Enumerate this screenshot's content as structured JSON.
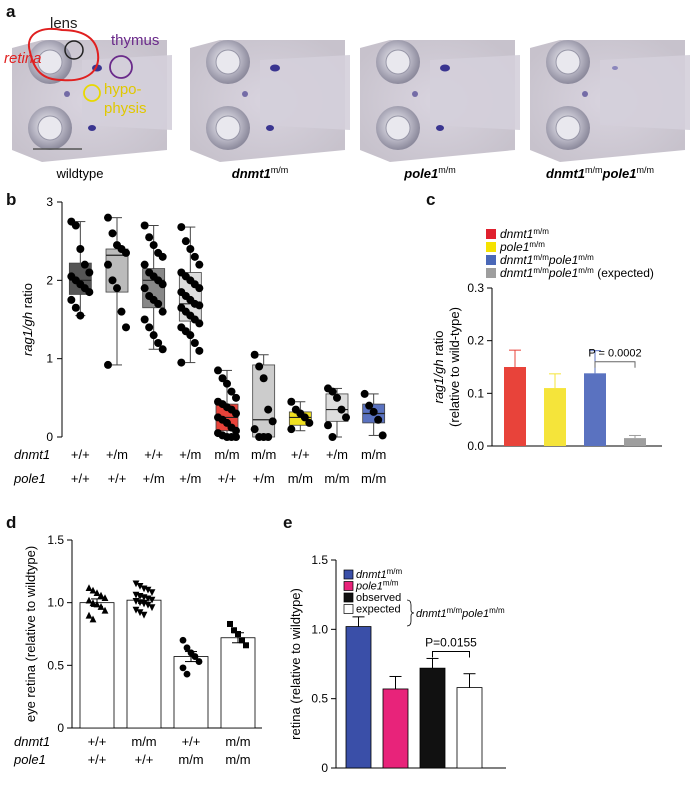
{
  "panels": {
    "a": {
      "letter": "a",
      "labels": {
        "lens": "lens",
        "thymus": "thymus",
        "retina": "retina",
        "hypophysis_1": "hypo-",
        "hypophysis_2": "physis"
      },
      "images": [
        {
          "genotype_main": "wildtype",
          "genotype_sup": ""
        },
        {
          "genotype_main": "dnmt1",
          "genotype_sup": "m/m"
        },
        {
          "genotype_main": "pole1",
          "genotype_sup": "m/m"
        },
        {
          "genotype_main": "dnmt1",
          "genotype_sup": "m/m",
          "genotype_main2": "pole1",
          "genotype_sup2": "m/m"
        }
      ],
      "colors": {
        "retina": "#e02020",
        "thymus": "#6a2a8a",
        "hypophysis": "#e8d800",
        "lens": "#222222"
      }
    },
    "b": {
      "letter": "b"
    },
    "c": {
      "letter": "c"
    },
    "d": {
      "letter": "d"
    },
    "e": {
      "letter": "e"
    }
  },
  "chart_data": [
    {
      "panel": "b",
      "type": "box",
      "ylabel_italic": "rag1/gh",
      "ylabel_rest": " ratio",
      "ylim": [
        0,
        3
      ],
      "yticks": [
        "0",
        "1",
        "2",
        "3"
      ],
      "row_labels": [
        "dnmt1",
        "pole1"
      ],
      "dnmt1": [
        "+/+",
        "+/m",
        "+/+",
        "+/m",
        "m/m",
        "m/m",
        "+/+",
        "+/m",
        "m/m"
      ],
      "pole1": [
        "+/+",
        "+/+",
        "+/m",
        "+/m",
        "+/+",
        "+/m",
        "m/m",
        "m/m",
        "m/m"
      ],
      "groups": [
        {
          "color": "#555555",
          "q1": 1.82,
          "median": 2.0,
          "q3": 2.22,
          "min": 1.55,
          "max": 2.75,
          "points": [
            2.75,
            2.7,
            2.4,
            2.2,
            2.1,
            2.05,
            2.0,
            1.95,
            1.9,
            1.85,
            1.75,
            1.65,
            1.55
          ]
        },
        {
          "color": "#bbbbbb",
          "q1": 1.85,
          "median": 2.32,
          "q3": 2.4,
          "min": 0.92,
          "max": 2.8,
          "points": [
            2.8,
            2.6,
            2.45,
            2.4,
            2.35,
            2.2,
            2.0,
            1.9,
            1.6,
            1.4,
            0.92
          ]
        },
        {
          "color": "#888888",
          "q1": 1.65,
          "median": 2.0,
          "q3": 2.15,
          "min": 1.12,
          "max": 2.7,
          "points": [
            2.7,
            2.55,
            2.45,
            2.35,
            2.3,
            2.2,
            2.1,
            2.05,
            2.0,
            1.95,
            1.9,
            1.8,
            1.75,
            1.7,
            1.6,
            1.5,
            1.4,
            1.3,
            1.2,
            1.12
          ]
        },
        {
          "color": "#dddddd",
          "q1": 1.48,
          "median": 1.7,
          "q3": 2.1,
          "min": 0.95,
          "max": 2.68,
          "points": [
            2.68,
            2.5,
            2.4,
            2.3,
            2.2,
            2.1,
            2.05,
            2.0,
            1.95,
            1.9,
            1.85,
            1.8,
            1.75,
            1.7,
            1.68,
            1.65,
            1.6,
            1.55,
            1.5,
            1.45,
            1.4,
            1.35,
            1.3,
            1.2,
            1.1,
            0.95
          ]
        },
        {
          "color": "#e8433a",
          "q1": 0.08,
          "median": 0.25,
          "q3": 0.42,
          "min": 0.0,
          "max": 0.85,
          "points": [
            0.85,
            0.75,
            0.68,
            0.58,
            0.5,
            0.45,
            0.42,
            0.38,
            0.35,
            0.3,
            0.25,
            0.22,
            0.18,
            0.12,
            0.08,
            0.05,
            0.02,
            0.0,
            0.0,
            0.0
          ]
        },
        {
          "color": "#cccccc",
          "q1": 0.0,
          "median": 0.22,
          "q3": 0.92,
          "min": 0.0,
          "max": 1.05,
          "points": [
            1.05,
            0.9,
            0.75,
            0.35,
            0.2,
            0.1,
            0.0,
            0.0,
            0.0
          ]
        },
        {
          "color": "#f0e020",
          "q1": 0.15,
          "median": 0.25,
          "q3": 0.32,
          "min": 0.08,
          "max": 0.45,
          "points": [
            0.45,
            0.35,
            0.3,
            0.25,
            0.18,
            0.1
          ]
        },
        {
          "color": "#dddddd",
          "q1": 0.2,
          "median": 0.35,
          "q3": 0.55,
          "min": 0.0,
          "max": 0.62,
          "points": [
            0.62,
            0.58,
            0.5,
            0.35,
            0.25,
            0.15,
            0.0
          ]
        },
        {
          "color": "#5a72c0",
          "q1": 0.18,
          "median": 0.3,
          "q3": 0.42,
          "min": 0.02,
          "max": 0.55,
          "points": [
            0.55,
            0.4,
            0.32,
            0.22,
            0.02
          ]
        }
      ]
    },
    {
      "panel": "c",
      "type": "bar",
      "ylabel_italic": "rag1/gh",
      "ylabel_rest": " ratio",
      "ylabel2": "(relative to wild-type)",
      "ylim": [
        0,
        0.3
      ],
      "yticks": [
        "0.0",
        "0.1",
        "0.2",
        "0.3"
      ],
      "legend": [
        {
          "main": "dnmt1",
          "sup": "m/m",
          "main2": "",
          "sup2": "",
          "suffix": ""
        },
        {
          "main": "pole1",
          "sup": "m/m",
          "main2": "",
          "sup2": "",
          "suffix": ""
        },
        {
          "main": "dnmt1",
          "sup": "m/m",
          "main2": "pole1",
          "sup2": "m/m",
          "suffix": ""
        },
        {
          "main": "dnmt1",
          "sup": "m/m",
          "main2": "pole1",
          "sup2": "m/m",
          "suffix": " (expected)"
        }
      ],
      "colors": [
        "#e8433a",
        "#f5e43a",
        "#5a72c0",
        "#9e9e9e"
      ],
      "legend_colors": [
        "#e0202e",
        "#f5e200",
        "#4a68b8",
        "#9e9e9e"
      ],
      "values": [
        0.15,
        0.11,
        0.138,
        0.015
      ],
      "errors": [
        0.032,
        0.027,
        0.043,
        0.005
      ],
      "annotation": "P = 0.0002"
    },
    {
      "panel": "d",
      "type": "bar",
      "ylabel": "eye retina (relative to wildtype)",
      "ylim": [
        0,
        1.5
      ],
      "yticks": [
        "0",
        "0.5",
        "1.0",
        "1.5"
      ],
      "row_labels": [
        "dnmt1",
        "pole1"
      ],
      "dnmt1": [
        "+/+",
        "m/m",
        "+/+",
        "m/m"
      ],
      "pole1": [
        "+/+",
        "+/+",
        "m/m",
        "m/m"
      ],
      "values": [
        1.0,
        1.02,
        0.57,
        0.72
      ],
      "errors": [
        0.03,
        0.025,
        0.04,
        0.04
      ],
      "markers": [
        "triangle-up",
        "triangle-down",
        "circle",
        "square"
      ],
      "points": [
        [
          1.12,
          1.1,
          1.08,
          1.06,
          1.04,
          1.02,
          1.0,
          0.99,
          0.97,
          0.94,
          0.9,
          0.87
        ],
        [
          1.15,
          1.13,
          1.11,
          1.1,
          1.08,
          1.06,
          1.05,
          1.04,
          1.03,
          1.02,
          1.01,
          1.0,
          0.99,
          0.98,
          0.96,
          0.94,
          0.92,
          0.9
        ],
        [
          0.7,
          0.64,
          0.6,
          0.57,
          0.53,
          0.48,
          0.43
        ],
        [
          0.83,
          0.78,
          0.75,
          0.7,
          0.66
        ]
      ]
    },
    {
      "panel": "e",
      "type": "bar",
      "ylabel": "retina (relative to wildtype)",
      "ylim": [
        0,
        1.5
      ],
      "yticks": [
        "0",
        "0.5",
        "1.0",
        "1.5"
      ],
      "legend": [
        {
          "label": "dnmt1",
          "sup": "m/m",
          "italic": true
        },
        {
          "label": "pole1",
          "sup": "m/m",
          "italic": true
        },
        {
          "label": "observed",
          "sup": "",
          "italic": false
        },
        {
          "label": "expected",
          "sup": "",
          "italic": false
        }
      ],
      "bracket_label_main": "dnmt1",
      "bracket_label_sup": "m/m",
      "bracket_label_main2": "pole1",
      "bracket_label_sup2": "m/m",
      "colors": [
        "#3a4fa8",
        "#e8237a",
        "#111111",
        "#ffffff"
      ],
      "values": [
        1.02,
        0.57,
        0.72,
        0.58
      ],
      "errors": [
        0.07,
        0.09,
        0.07,
        0.1
      ],
      "annotation": "P=0.0155"
    }
  ]
}
